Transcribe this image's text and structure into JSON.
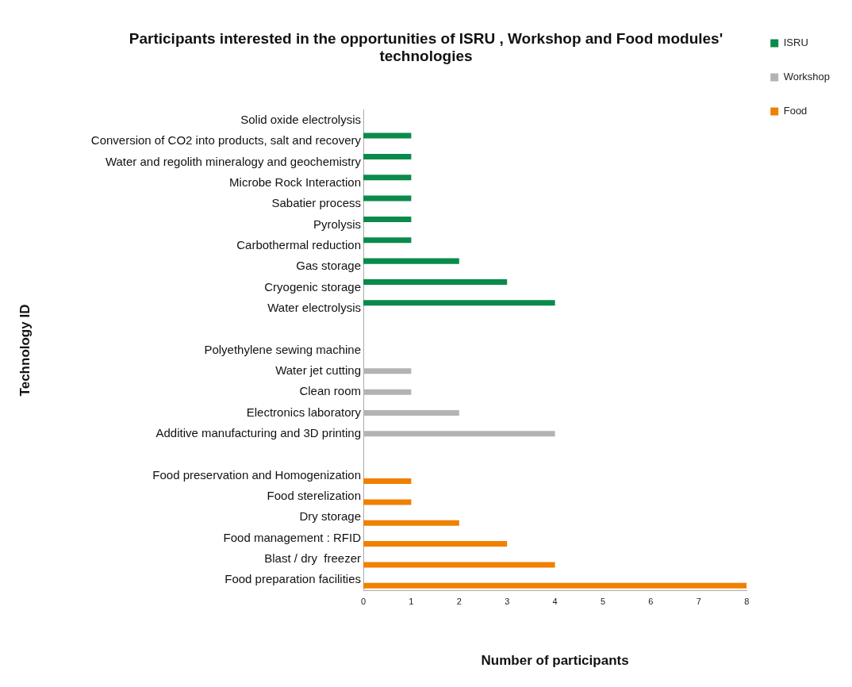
{
  "chart_data": {
    "type": "bar",
    "orientation": "horizontal",
    "title": "Participants interested in the opportunities of ISRU , Workshop and Food modules' technologies",
    "xlabel": "Number of participants",
    "ylabel": "Technology ID",
    "categories": [
      "Solid oxide electrolysis",
      "Conversion of CO2 into products, salt and recovery",
      "Water and regolith mineralogy and geochemistry",
      "Microbe Rock Interaction",
      "Sabatier process",
      "Pyrolysis",
      "Carbothermal reduction",
      "Gas storage",
      "Cryogenic storage",
      "Water electrolysis",
      null,
      "Polyethylene sewing machine",
      "Water jet cutting",
      "Clean room",
      "Electronics laboratory",
      "Additive manufacturing and 3D printing",
      null,
      "Food preservation and Homogenization",
      "Food sterelization",
      "Dry storage",
      "Food management : RFID",
      "Blast / dry  freezer",
      "Food preparation facilities"
    ],
    "series": [
      {
        "name": "ISRU",
        "color": "#0a8a4b",
        "values": [
          0,
          1,
          1,
          1,
          1,
          1,
          1,
          2,
          3,
          4,
          null,
          null,
          null,
          null,
          null,
          null,
          null,
          null,
          null,
          null,
          null,
          null,
          null
        ]
      },
      {
        "name": "Workshop",
        "color": "#b3b3b3",
        "values": [
          null,
          null,
          null,
          null,
          null,
          null,
          null,
          null,
          null,
          null,
          null,
          0,
          1,
          1,
          2,
          4,
          null,
          null,
          null,
          null,
          null,
          null,
          null
        ]
      },
      {
        "name": "Food",
        "color": "#f08000",
        "values": [
          null,
          null,
          null,
          null,
          null,
          null,
          null,
          null,
          null,
          null,
          null,
          null,
          null,
          null,
          null,
          null,
          null,
          1,
          1,
          2,
          3,
          4,
          8
        ]
      }
    ],
    "xlim": [
      0,
      8
    ],
    "xticks": [
      0,
      1,
      2,
      3,
      4,
      5,
      6,
      7,
      8
    ],
    "grid": false,
    "legend": "top right"
  }
}
